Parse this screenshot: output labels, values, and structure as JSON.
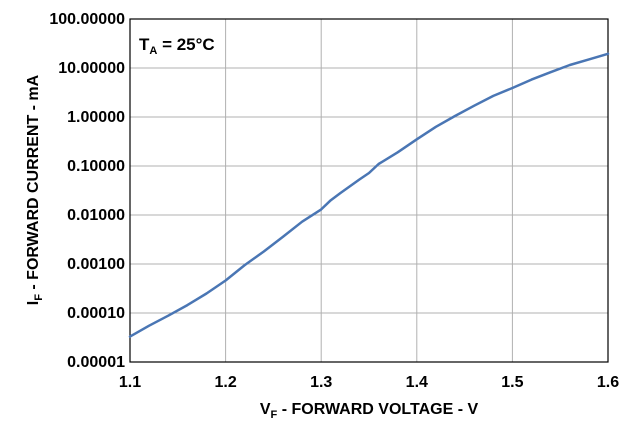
{
  "chart_data": {
    "type": "line",
    "title": "",
    "xlabel": {
      "main": "V",
      "sub": "F",
      "rest": " - FORWARD VOLTAGE - V"
    },
    "ylabel": {
      "main": "I",
      "sub": "F",
      "rest": " - FORWARD CURRENT - mA"
    },
    "annotation": {
      "main": "T",
      "sub": "A",
      "rest": " = 25°C"
    },
    "xlim": [
      1.1,
      1.6
    ],
    "ylim": [
      1e-05,
      100
    ],
    "yscale": "log",
    "grid": true,
    "x_ticks": [
      1.1,
      1.2,
      1.3,
      1.4,
      1.5,
      1.6
    ],
    "x_tick_labels": [
      "1.1",
      "1.2",
      "1.3",
      "1.4",
      "1.5",
      "1.6"
    ],
    "y_ticks": [
      1e-05,
      0.0001,
      0.001,
      0.01,
      0.1,
      1,
      10,
      100
    ],
    "y_tick_labels": [
      "0.00001",
      "0.00010",
      "0.00100",
      "0.01000",
      "0.10000",
      "1.00000",
      "10.00000",
      "100.00000"
    ],
    "line_color": "#4a76b4",
    "grid_color": "#b0b0b0",
    "series": [
      {
        "x": [
          1.1,
          1.12,
          1.14,
          1.16,
          1.17,
          1.18,
          1.2,
          1.22,
          1.24,
          1.26,
          1.28,
          1.3,
          1.31,
          1.32,
          1.34,
          1.35,
          1.36,
          1.38,
          1.4,
          1.42,
          1.44,
          1.46,
          1.48,
          1.5,
          1.52,
          1.54,
          1.56,
          1.58,
          1.6
        ],
        "y": [
          3.3e-05,
          5.5e-05,
          8.8e-05,
          0.000145,
          0.00019,
          0.00025,
          0.00046,
          0.00095,
          0.0018,
          0.0036,
          0.0073,
          0.013,
          0.02,
          0.028,
          0.053,
          0.072,
          0.11,
          0.19,
          0.35,
          0.63,
          1.05,
          1.7,
          2.7,
          3.9,
          5.8,
          8.2,
          11.5,
          15.0,
          19.5
        ]
      }
    ]
  }
}
